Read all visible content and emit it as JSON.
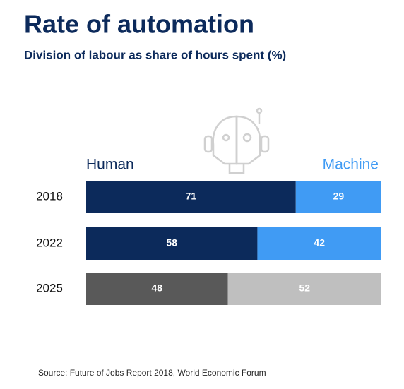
{
  "chart_data": {
    "type": "stacked-bar-horizontal",
    "title": "Rate of automation",
    "subtitle": "Division of labour as share of hours spent (%)",
    "source": "Source: Future of Jobs Report 2018, World Economic Forum",
    "categories": [
      "2018",
      "2022",
      "2025"
    ],
    "series": [
      {
        "name": "Human",
        "color": "#0c2a5b",
        "colors": [
          "#0c2a5b",
          "#0c2a5b",
          "#595959"
        ],
        "values": [
          71,
          58,
          48
        ]
      },
      {
        "name": "Machine",
        "color": "#409bf4",
        "colors": [
          "#409bf4",
          "#409bf4",
          "#bfbfbf"
        ],
        "values": [
          29,
          42,
          52
        ]
      }
    ],
    "xlim": [
      0,
      100
    ]
  }
}
